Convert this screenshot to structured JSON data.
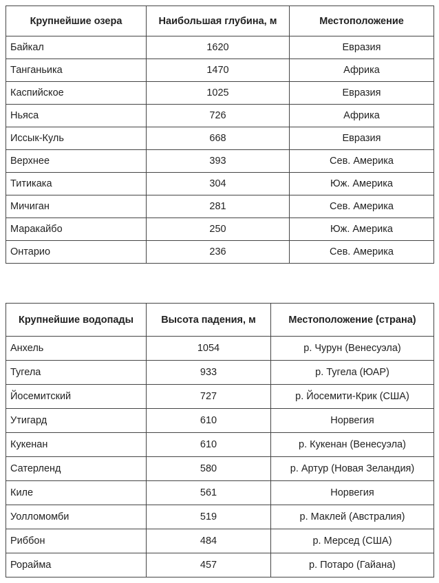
{
  "lakes": {
    "header": [
      "Крупнейшие озера",
      "Наибольшая глубина, м",
      "Местоположение"
    ],
    "rows": [
      [
        "Байкал",
        1620,
        "Евразия"
      ],
      [
        "Танганьика",
        1470,
        "Африка"
      ],
      [
        "Каспийское",
        1025,
        "Евразия"
      ],
      [
        "Ньяса",
        726,
        "Африка"
      ],
      [
        "Иссык-Куль",
        668,
        "Евразия"
      ],
      [
        "Верхнее",
        393,
        "Сев. Америка"
      ],
      [
        "Титикака",
        304,
        "Юж. Америка"
      ],
      [
        "Мичиган",
        281,
        "Сев. Америка"
      ],
      [
        "Маракайбо",
        250,
        "Юж. Америка"
      ],
      [
        "Онтарио",
        236,
        "Сев. Америка"
      ]
    ]
  },
  "waterfalls": {
    "header": [
      "Крупнейшие водопады",
      "Высота падения, м",
      "Местоположение (страна)"
    ],
    "rows": [
      [
        "Анхель",
        1054,
        "р. Чурун (Венесуэла)"
      ],
      [
        "Тугела",
        933,
        "р. Тугела (ЮАР)"
      ],
      [
        "Йосемитский",
        727,
        "р. Йосемити-Крик (США)"
      ],
      [
        "Утигард",
        610,
        "Норвегия"
      ],
      [
        "Кукенан",
        610,
        "р. Кукенан (Венесуэла)"
      ],
      [
        "Сатерленд",
        580,
        "р. Артур (Новая Зеландия)"
      ],
      [
        "Киле",
        561,
        "Норвегия"
      ],
      [
        "Уолломомби",
        519,
        "р. Маклей (Австралия)"
      ],
      [
        "Риббон",
        484,
        "р. Мерсед (США)"
      ],
      [
        "Рорайма",
        457,
        "р. Потаро (Гайана)"
      ]
    ]
  }
}
